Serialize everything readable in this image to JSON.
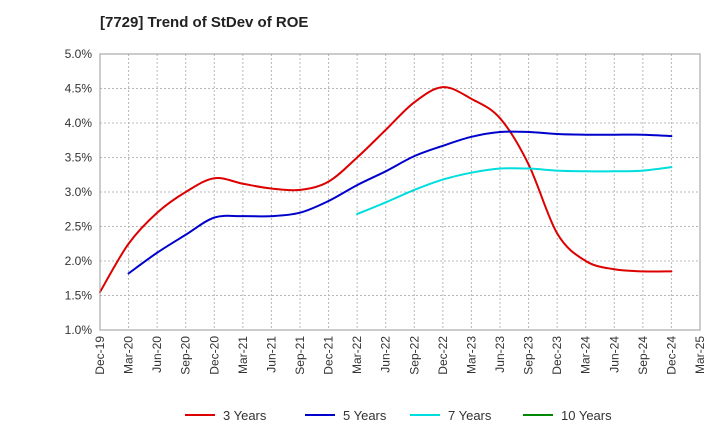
{
  "chart_data": {
    "type": "line",
    "title": "[7729]  Trend of StDev of ROE",
    "xlabel": "",
    "ylabel": "",
    "x_ticks": [
      "Dec-19",
      "Mar-20",
      "Jun-20",
      "Sep-20",
      "Dec-20",
      "Mar-21",
      "Jun-21",
      "Sep-21",
      "Dec-21",
      "Mar-22",
      "Jun-22",
      "Sep-22",
      "Dec-22",
      "Mar-23",
      "Jun-23",
      "Sep-23",
      "Dec-23",
      "Mar-24",
      "Jun-24",
      "Sep-24",
      "Dec-24",
      "Mar-25"
    ],
    "y_ticks": [
      "1.0%",
      "1.5%",
      "2.0%",
      "2.5%",
      "3.0%",
      "3.5%",
      "4.0%",
      "4.5%",
      "5.0%"
    ],
    "ylim": [
      1.0,
      5.0
    ],
    "y_unit": "%",
    "grid": "dotted",
    "legend_position": "bottom",
    "series": [
      {
        "name": "3 Years",
        "color": "#dd0000",
        "x": [
          "Dec-19",
          "Mar-20",
          "Jun-20",
          "Sep-20",
          "Dec-20",
          "Mar-21",
          "Jun-21",
          "Sep-21",
          "Dec-21",
          "Mar-22",
          "Jun-22",
          "Sep-22",
          "Dec-22",
          "Mar-23",
          "Jun-23",
          "Sep-23",
          "Dec-23",
          "Mar-24",
          "Jun-24",
          "Sep-24",
          "Dec-24"
        ],
        "values": [
          1.55,
          2.25,
          2.7,
          3.0,
          3.2,
          3.12,
          3.05,
          3.03,
          3.15,
          3.5,
          3.9,
          4.3,
          4.52,
          4.35,
          4.07,
          3.4,
          2.4,
          2.0,
          1.88,
          1.85,
          1.85
        ]
      },
      {
        "name": "5 Years",
        "color": "#0000cc",
        "x": [
          "Mar-20",
          "Jun-20",
          "Sep-20",
          "Dec-20",
          "Mar-21",
          "Jun-21",
          "Sep-21",
          "Dec-21",
          "Mar-22",
          "Jun-22",
          "Sep-22",
          "Dec-22",
          "Mar-23",
          "Jun-23",
          "Sep-23",
          "Dec-23",
          "Mar-24",
          "Jun-24",
          "Sep-24",
          "Dec-24"
        ],
        "values": [
          1.82,
          2.12,
          2.38,
          2.63,
          2.65,
          2.65,
          2.7,
          2.87,
          3.1,
          3.3,
          3.52,
          3.67,
          3.8,
          3.87,
          3.87,
          3.84,
          3.83,
          3.83,
          3.83,
          3.81
        ]
      },
      {
        "name": "7 Years",
        "color": "#00dddd",
        "x": [
          "Mar-22",
          "Jun-22",
          "Sep-22",
          "Dec-22",
          "Mar-23",
          "Jun-23",
          "Sep-23",
          "Dec-23",
          "Mar-24",
          "Jun-24",
          "Sep-24",
          "Dec-24"
        ],
        "values": [
          2.68,
          2.85,
          3.03,
          3.18,
          3.28,
          3.34,
          3.34,
          3.31,
          3.3,
          3.3,
          3.31,
          3.36
        ]
      },
      {
        "name": "10 Years",
        "color": "#008800",
        "x": [],
        "values": []
      }
    ]
  }
}
